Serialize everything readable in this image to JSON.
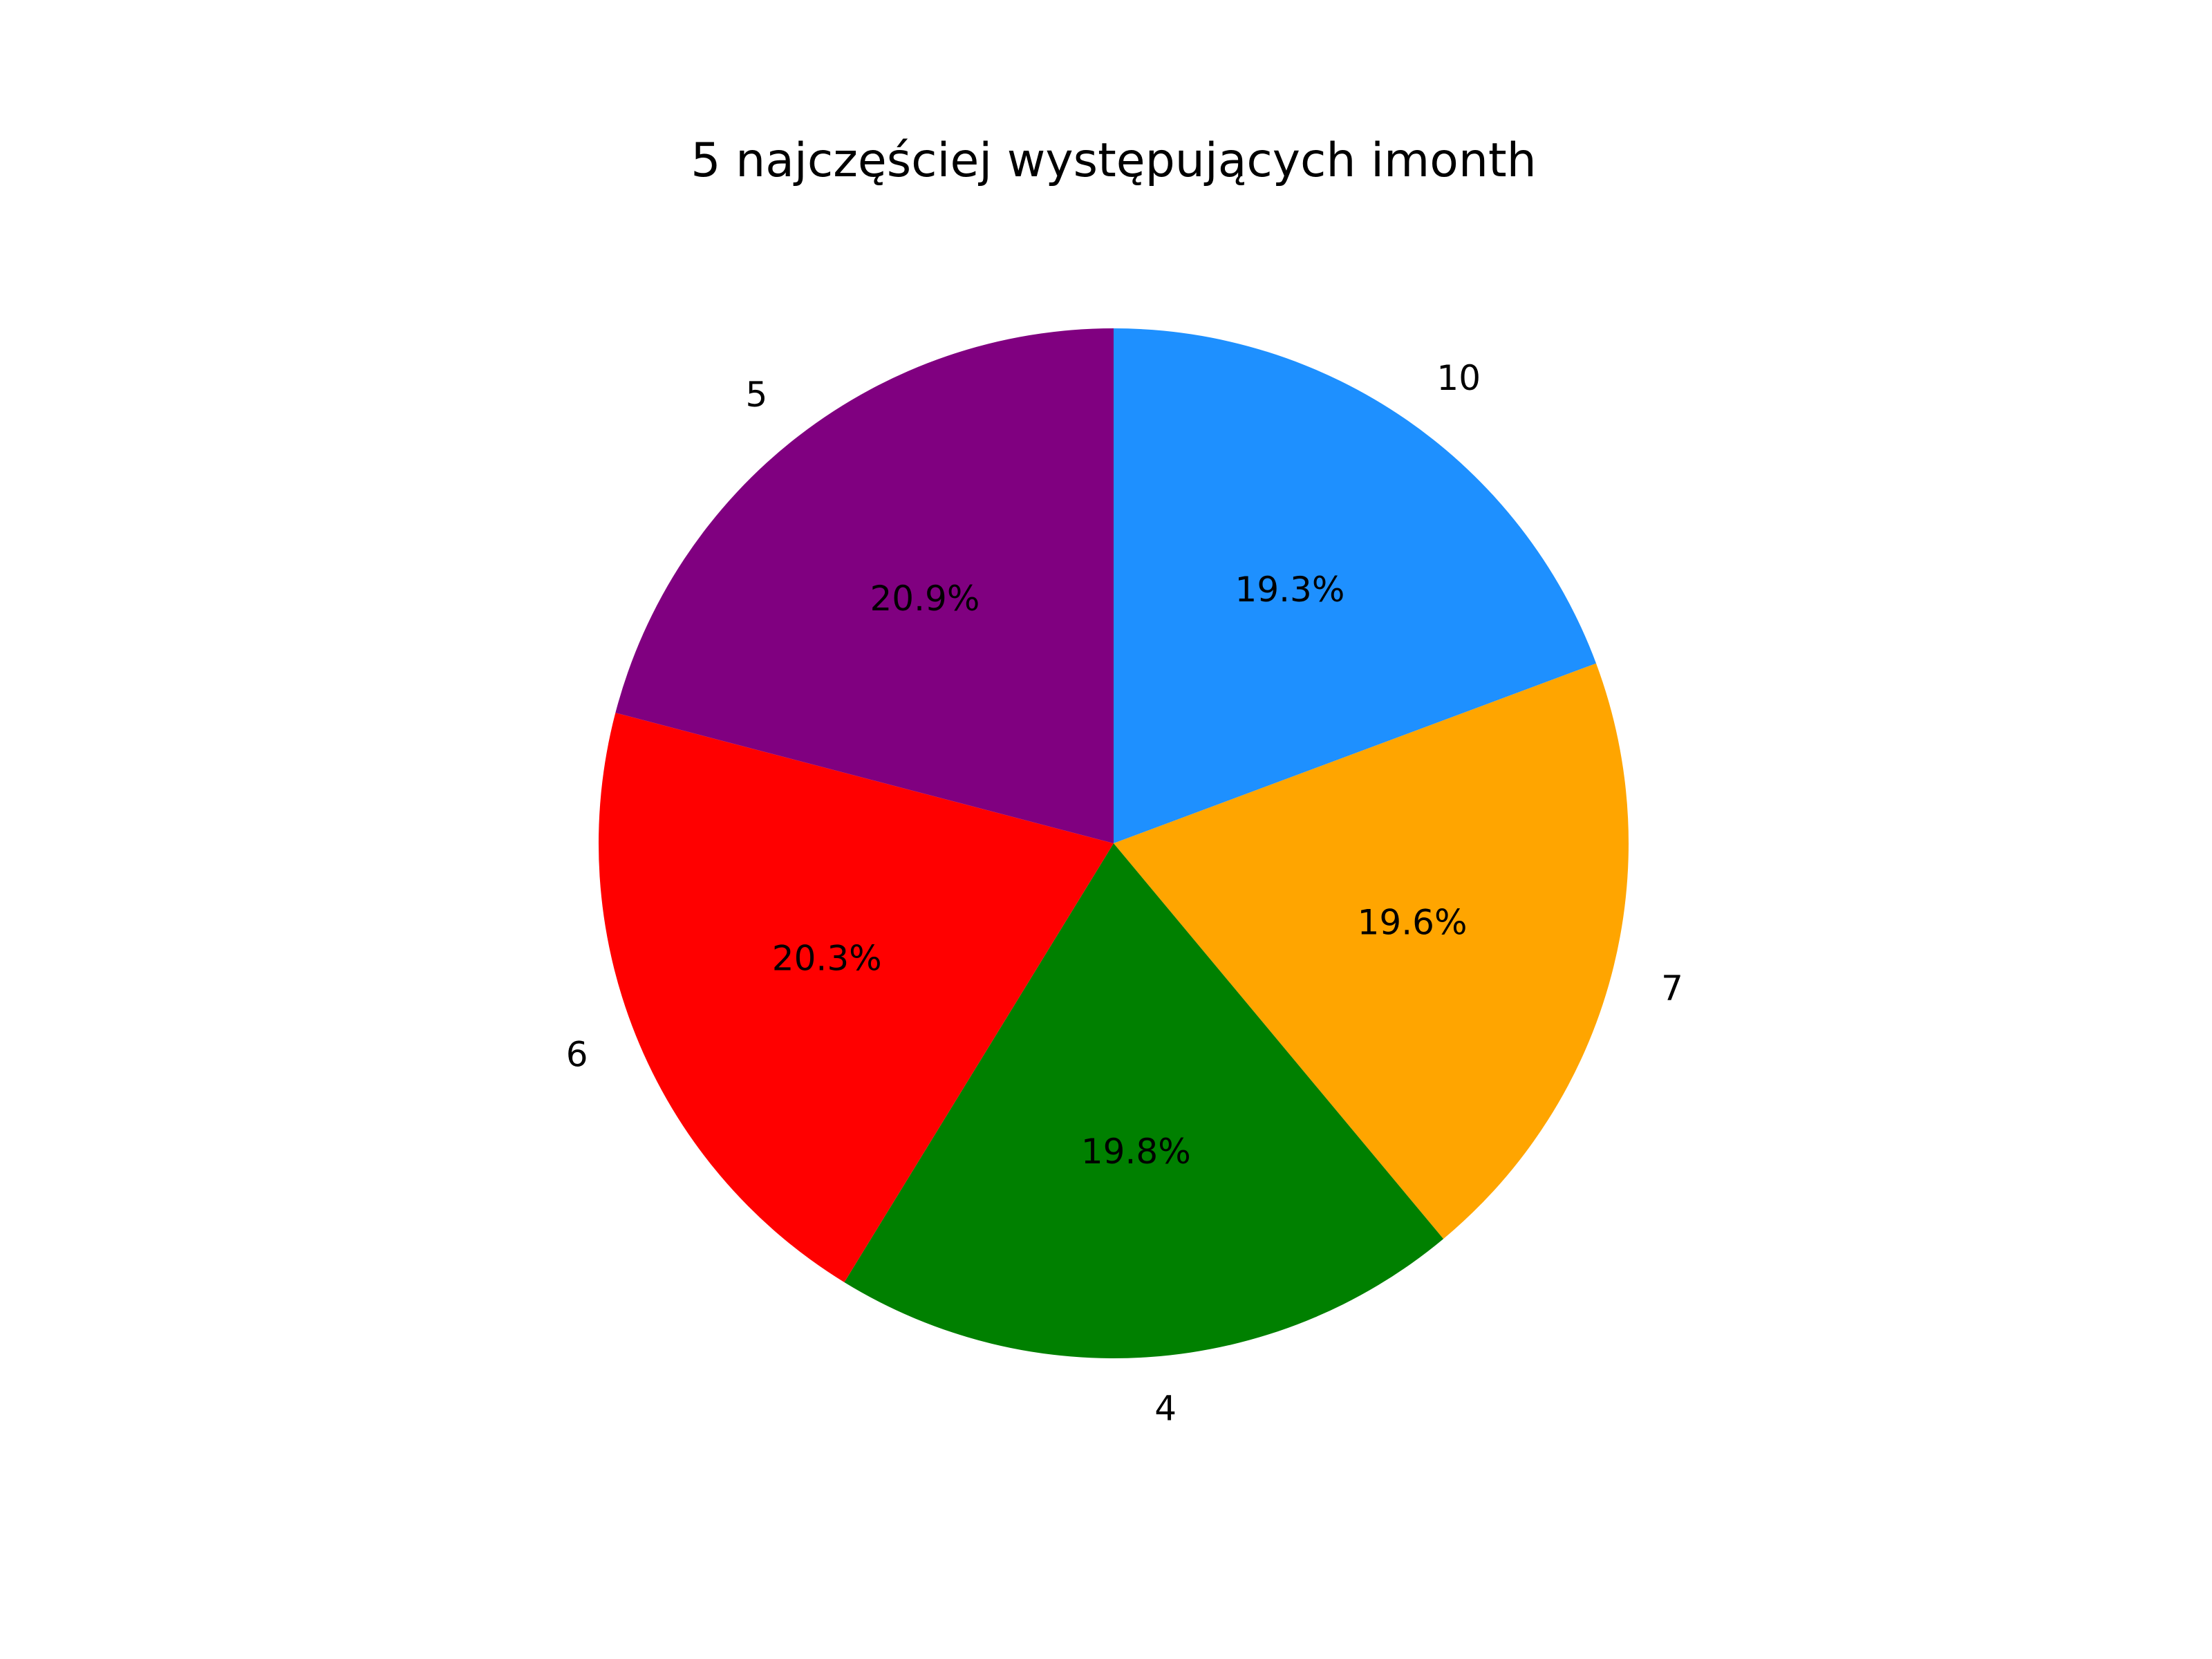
{
  "chart_data": {
    "type": "pie",
    "title": "5 najczęściej występujących imonth",
    "categories": [
      "10",
      "7",
      "4",
      "6",
      "5"
    ],
    "values": [
      19.3,
      19.6,
      19.8,
      20.3,
      20.9
    ],
    "value_labels": [
      "19.3%",
      "19.6%",
      "19.8%",
      "20.3%",
      "20.9%"
    ],
    "colors": [
      "#1e90ff",
      "#ffa500",
      "#008000",
      "#ff0000",
      "#800080"
    ],
    "start_angle_deg": 90,
    "direction": "clockwise",
    "legend": "none"
  }
}
